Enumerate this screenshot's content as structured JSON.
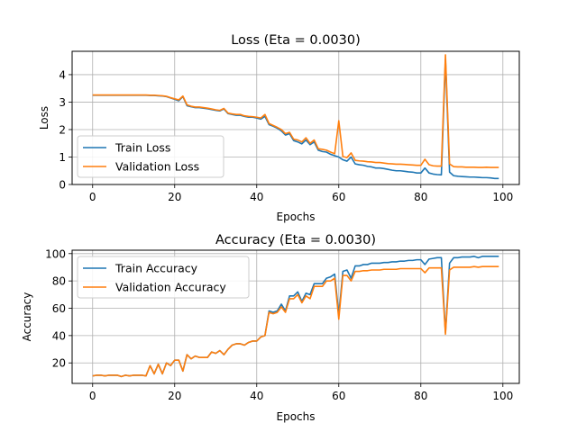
{
  "chart_data": [
    {
      "type": "line",
      "title": "Loss (Eta = 0.0030)",
      "xlabel": "Epochs",
      "ylabel": "Loss",
      "xlim": [
        -5,
        104
      ],
      "ylim": [
        0,
        4.85
      ],
      "xticks": [
        0,
        20,
        40,
        60,
        80,
        100
      ],
      "yticks": [
        0,
        1,
        2,
        3,
        4
      ],
      "grid": true,
      "legend_position": "lower-left",
      "series": [
        {
          "name": "Train Loss",
          "color": "#1f77b4",
          "x": [
            0,
            1,
            2,
            3,
            4,
            5,
            6,
            7,
            8,
            9,
            10,
            11,
            12,
            13,
            14,
            15,
            16,
            17,
            18,
            19,
            20,
            21,
            22,
            23,
            24,
            25,
            26,
            27,
            28,
            29,
            30,
            31,
            32,
            33,
            34,
            35,
            36,
            37,
            38,
            39,
            40,
            41,
            42,
            43,
            44,
            45,
            46,
            47,
            48,
            49,
            50,
            51,
            52,
            53,
            54,
            55,
            56,
            57,
            58,
            59,
            60,
            61,
            62,
            63,
            64,
            65,
            66,
            67,
            68,
            69,
            70,
            71,
            72,
            73,
            74,
            75,
            76,
            77,
            78,
            79,
            80,
            81,
            82,
            83,
            84,
            85,
            86,
            87,
            88,
            89,
            90,
            91,
            92,
            93,
            94,
            95,
            96,
            97,
            98,
            99
          ],
          "y": [
            3.25,
            3.25,
            3.25,
            3.25,
            3.25,
            3.25,
            3.25,
            3.25,
            3.25,
            3.25,
            3.25,
            3.25,
            3.25,
            3.25,
            3.24,
            3.24,
            3.23,
            3.22,
            3.2,
            3.15,
            3.1,
            3.05,
            3.2,
            2.87,
            2.83,
            2.8,
            2.8,
            2.78,
            2.76,
            2.73,
            2.7,
            2.68,
            2.75,
            2.58,
            2.55,
            2.52,
            2.52,
            2.48,
            2.45,
            2.45,
            2.42,
            2.38,
            2.48,
            2.18,
            2.12,
            2.05,
            1.95,
            1.8,
            1.85,
            1.6,
            1.55,
            1.48,
            1.62,
            1.45,
            1.55,
            1.25,
            1.2,
            1.18,
            1.1,
            1.05,
            1.0,
            0.9,
            0.85,
            1.0,
            0.75,
            0.72,
            0.7,
            0.66,
            0.64,
            0.6,
            0.6,
            0.58,
            0.55,
            0.52,
            0.5,
            0.5,
            0.48,
            0.46,
            0.45,
            0.42,
            0.42,
            0.6,
            0.42,
            0.38,
            0.36,
            0.35,
            4.55,
            0.45,
            0.32,
            0.3,
            0.29,
            0.28,
            0.27,
            0.27,
            0.26,
            0.25,
            0.25,
            0.24,
            0.22,
            0.22
          ]
        },
        {
          "name": "Validation Loss",
          "color": "#ff7f0e",
          "x": [
            0,
            1,
            2,
            3,
            4,
            5,
            6,
            7,
            8,
            9,
            10,
            11,
            12,
            13,
            14,
            15,
            16,
            17,
            18,
            19,
            20,
            21,
            22,
            23,
            24,
            25,
            26,
            27,
            28,
            29,
            30,
            31,
            32,
            33,
            34,
            35,
            36,
            37,
            38,
            39,
            40,
            41,
            42,
            43,
            44,
            45,
            46,
            47,
            48,
            49,
            50,
            51,
            52,
            53,
            54,
            55,
            56,
            57,
            58,
            59,
            60,
            61,
            62,
            63,
            64,
            65,
            66,
            67,
            68,
            69,
            70,
            71,
            72,
            73,
            74,
            75,
            76,
            77,
            78,
            79,
            80,
            81,
            82,
            83,
            84,
            85,
            86,
            87,
            88,
            89,
            90,
            91,
            92,
            93,
            94,
            95,
            96,
            97,
            98,
            99
          ],
          "y": [
            3.26,
            3.26,
            3.26,
            3.26,
            3.26,
            3.26,
            3.26,
            3.26,
            3.26,
            3.26,
            3.26,
            3.26,
            3.26,
            3.26,
            3.25,
            3.25,
            3.24,
            3.23,
            3.21,
            3.16,
            3.12,
            3.08,
            3.22,
            2.9,
            2.85,
            2.82,
            2.82,
            2.8,
            2.78,
            2.75,
            2.72,
            2.7,
            2.77,
            2.6,
            2.57,
            2.55,
            2.55,
            2.5,
            2.48,
            2.47,
            2.45,
            2.42,
            2.55,
            2.22,
            2.15,
            2.08,
            2.0,
            1.85,
            1.9,
            1.65,
            1.62,
            1.55,
            1.7,
            1.5,
            1.62,
            1.3,
            1.28,
            1.25,
            1.18,
            1.12,
            2.32,
            1.02,
            0.98,
            1.15,
            0.88,
            0.86,
            0.85,
            0.83,
            0.82,
            0.8,
            0.8,
            0.78,
            0.76,
            0.75,
            0.74,
            0.74,
            0.73,
            0.72,
            0.71,
            0.7,
            0.7,
            0.92,
            0.72,
            0.68,
            0.67,
            0.67,
            4.72,
            0.75,
            0.65,
            0.64,
            0.64,
            0.63,
            0.63,
            0.63,
            0.62,
            0.62,
            0.63,
            0.62,
            0.62,
            0.62
          ]
        }
      ]
    },
    {
      "type": "line",
      "title": "Accuracy (Eta = 0.0030)",
      "xlabel": "Epochs",
      "ylabel": "Accuracy",
      "xlim": [
        -5,
        104
      ],
      "ylim": [
        5,
        102.5
      ],
      "xticks": [
        0,
        20,
        40,
        60,
        80,
        100
      ],
      "yticks": [
        20,
        40,
        60,
        80,
        100
      ],
      "grid": true,
      "legend_position": "upper-left",
      "series": [
        {
          "name": "Train Accuracy",
          "color": "#1f77b4",
          "x": [
            0,
            1,
            2,
            3,
            4,
            5,
            6,
            7,
            8,
            9,
            10,
            11,
            12,
            13,
            14,
            15,
            16,
            17,
            18,
            19,
            20,
            21,
            22,
            23,
            24,
            25,
            26,
            27,
            28,
            29,
            30,
            31,
            32,
            33,
            34,
            35,
            36,
            37,
            38,
            39,
            40,
            41,
            42,
            43,
            44,
            45,
            46,
            47,
            48,
            49,
            50,
            51,
            52,
            53,
            54,
            55,
            56,
            57,
            58,
            59,
            60,
            61,
            62,
            63,
            64,
            65,
            66,
            67,
            68,
            69,
            70,
            71,
            72,
            73,
            74,
            75,
            76,
            77,
            78,
            79,
            80,
            81,
            82,
            83,
            84,
            85,
            86,
            87,
            88,
            89,
            90,
            91,
            92,
            93,
            94,
            95,
            96,
            97,
            98,
            99
          ],
          "y": [
            10.5,
            11,
            11,
            10.5,
            11,
            11,
            11,
            10,
            11,
            10.5,
            11,
            11,
            11,
            10.5,
            18,
            12,
            19,
            12,
            20,
            18,
            22,
            22,
            14,
            26,
            23,
            25,
            24,
            24,
            24,
            28,
            27,
            29,
            26,
            30,
            33,
            34,
            34,
            33,
            35,
            36,
            36,
            39,
            40,
            58,
            57,
            58,
            63,
            58,
            69,
            69,
            72,
            65,
            71,
            70,
            78,
            78,
            78,
            82,
            83,
            85,
            55,
            87,
            88,
            82,
            91,
            91,
            92,
            92,
            93,
            93,
            93,
            93.5,
            93.5,
            94,
            94,
            94.5,
            94.5,
            95,
            95,
            95.5,
            95.5,
            92,
            96,
            96.5,
            97,
            97,
            42,
            93,
            97,
            97,
            97.5,
            97.5,
            97.5,
            98,
            97,
            98,
            98,
            98,
            98,
            98
          ]
        },
        {
          "name": "Validation Accuracy",
          "color": "#ff7f0e",
          "x": [
            0,
            1,
            2,
            3,
            4,
            5,
            6,
            7,
            8,
            9,
            10,
            11,
            12,
            13,
            14,
            15,
            16,
            17,
            18,
            19,
            20,
            21,
            22,
            23,
            24,
            25,
            26,
            27,
            28,
            29,
            30,
            31,
            32,
            33,
            34,
            35,
            36,
            37,
            38,
            39,
            40,
            41,
            42,
            43,
            44,
            45,
            46,
            47,
            48,
            49,
            50,
            51,
            52,
            53,
            54,
            55,
            56,
            57,
            58,
            59,
            60,
            61,
            62,
            63,
            64,
            65,
            66,
            67,
            68,
            69,
            70,
            71,
            72,
            73,
            74,
            75,
            76,
            77,
            78,
            79,
            80,
            81,
            82,
            83,
            84,
            85,
            86,
            87,
            88,
            89,
            90,
            91,
            92,
            93,
            94,
            95,
            96,
            97,
            98,
            99
          ],
          "y": [
            10.5,
            11,
            11,
            10.5,
            11,
            11,
            11,
            10,
            11,
            10.5,
            11,
            11,
            11,
            10.5,
            18,
            12,
            19,
            12,
            20,
            18,
            22,
            22,
            14,
            26,
            23,
            25,
            24,
            24,
            24,
            28,
            27,
            29,
            26,
            30,
            33,
            34,
            34,
            33,
            35,
            36,
            36,
            39,
            40,
            57,
            56,
            57,
            61,
            57,
            67,
            67,
            70,
            64,
            69,
            67,
            76,
            76,
            76,
            80,
            80,
            82,
            52,
            84,
            84,
            80,
            87,
            87,
            87.5,
            87.5,
            88,
            88,
            88,
            88.5,
            88.5,
            88.5,
            88.5,
            89,
            89,
            89,
            89,
            89,
            89,
            86,
            89.5,
            89.5,
            89.5,
            89.5,
            41,
            88,
            90,
            90,
            90,
            90,
            90,
            90.5,
            90,
            90.5,
            90.5,
            90.5,
            90.5,
            90.5
          ]
        }
      ]
    }
  ]
}
